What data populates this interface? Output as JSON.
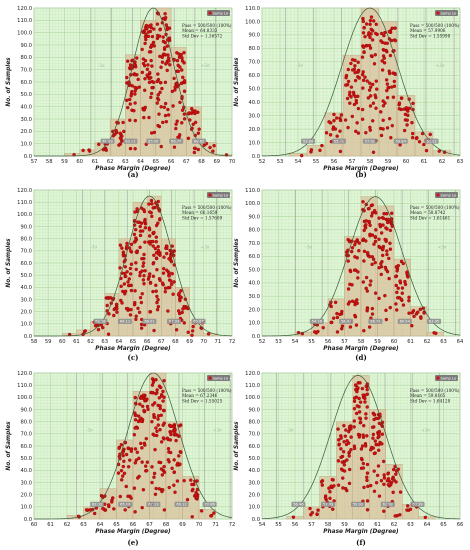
{
  "figure": {
    "panels_count": 6
  },
  "chart_data": [
    {
      "type": "bar",
      "caption": "(a)",
      "xlabel": "Phase Margin (Degree)",
      "ylabel": "No. of Samples",
      "xlim": [
        57,
        70
      ],
      "xticks": [
        "57",
        "58",
        "59",
        "60",
        "61",
        "62",
        "63",
        "64",
        "65",
        "66",
        "67",
        "68",
        "69",
        "70"
      ],
      "ylim": [
        0,
        120
      ],
      "yticks": [
        "0.0",
        "10.0",
        "20.0",
        "30.0",
        "40.0",
        "50.0",
        "60.0",
        "70.0",
        "80.0",
        "90.0",
        "100.0",
        "110.0",
        "120.0"
      ],
      "bins": [
        {
          "x0": 59.0,
          "x1": 60.0,
          "value": 2
        },
        {
          "x0": 60.0,
          "x1": 61.0,
          "value": 5
        },
        {
          "x0": 61.0,
          "x1": 62.0,
          "value": 11
        },
        {
          "x0": 62.0,
          "x1": 63.0,
          "value": 30
        },
        {
          "x0": 63.0,
          "x1": 64.0,
          "value": 82
        },
        {
          "x0": 64.0,
          "x1": 65.0,
          "value": 110
        },
        {
          "x0": 65.0,
          "x1": 66.0,
          "value": 120
        },
        {
          "x0": 66.0,
          "x1": 67.0,
          "value": 88
        },
        {
          "x0": 67.0,
          "x1": 68.0,
          "value": 40
        },
        {
          "x0": 68.0,
          "x1": 69.0,
          "value": 11
        },
        {
          "x0": 69.0,
          "x1": 70.0,
          "value": 1
        }
      ],
      "mean": 64.8333,
      "std": 1.36572,
      "stats": [
        "Pass = 500/500 (100%)",
        "Mean = 64.8333",
        "Std Dev = 1.36572"
      ],
      "legend": "Samp Lo = 50.00",
      "sigma_labels": [
        "-3σ",
        "+3σ"
      ],
      "markers": [
        "61.09",
        "63.02",
        "65.00",
        "66.77",
        "68.62"
      ],
      "series_color": "#cc1111",
      "bar_color": "#d9c7a3",
      "plot_bg": "#dff5d6"
    },
    {
      "type": "bar",
      "caption": "(b)",
      "xlabel": "Phase Margin (Degree)",
      "ylabel": "No. of Samples",
      "xlim": [
        52,
        63
      ],
      "xticks": [
        "52",
        "53",
        "54",
        "55",
        "56",
        "57",
        "58",
        "59",
        "60",
        "61",
        "62",
        "63"
      ],
      "ylim": [
        0,
        110
      ],
      "yticks": [
        "0.0",
        "10.0",
        "20.0",
        "30.0",
        "40.0",
        "50.0",
        "60.0",
        "70.0",
        "80.0",
        "90.0",
        "100.0",
        "110.0"
      ],
      "bins": [
        {
          "x0": 53.5,
          "x1": 54.5,
          "value": 2
        },
        {
          "x0": 54.5,
          "x1": 55.5,
          "value": 8
        },
        {
          "x0": 55.5,
          "x1": 56.5,
          "value": 32
        },
        {
          "x0": 56.5,
          "x1": 57.5,
          "value": 75
        },
        {
          "x0": 57.5,
          "x1": 58.5,
          "value": 110
        },
        {
          "x0": 58.5,
          "x1": 59.5,
          "value": 100
        },
        {
          "x0": 59.5,
          "x1": 60.5,
          "value": 45
        },
        {
          "x0": 60.5,
          "x1": 61.5,
          "value": 18
        },
        {
          "x0": 61.5,
          "x1": 62.5,
          "value": 4
        }
      ],
      "mean": 57.9906,
      "std": 1.55998,
      "stats": [
        "Pass = 500/500 (100%)",
        "Mean = 57.9906",
        "Std Dev = 1.55998"
      ],
      "legend": "Samp Lo = 50.00",
      "sigma_labels": [
        "-3σ",
        "+3σ"
      ],
      "markers": [
        "53.89",
        "55.91",
        "57.92",
        "59.84",
        "62.22"
      ],
      "series_color": "#cc1111",
      "bar_color": "#d9c7a3",
      "plot_bg": "#dff5d6"
    },
    {
      "type": "bar",
      "caption": "(c)",
      "xlabel": "Phase Margin (Degree)",
      "ylabel": "No. of Samples",
      "xlim": [
        58,
        72
      ],
      "xticks": [
        "58",
        "59",
        "60",
        "61",
        "62",
        "63",
        "64",
        "65",
        "66",
        "67",
        "68",
        "69",
        "70",
        "71",
        "72"
      ],
      "ylim": [
        0,
        120
      ],
      "yticks": [
        "0.0",
        "10.0",
        "20.0",
        "30.0",
        "40.0",
        "50.0",
        "60.0",
        "70.0",
        "80.0",
        "90.0",
        "100.0",
        "110.0",
        "120.0"
      ],
      "bins": [
        {
          "x0": 60.0,
          "x1": 61.0,
          "value": 2
        },
        {
          "x0": 61.0,
          "x1": 62.0,
          "value": 5
        },
        {
          "x0": 62.0,
          "x1": 63.0,
          "value": 12
        },
        {
          "x0": 63.0,
          "x1": 64.0,
          "value": 35
        },
        {
          "x0": 64.0,
          "x1": 65.0,
          "value": 80
        },
        {
          "x0": 65.0,
          "x1": 66.0,
          "value": 110
        },
        {
          "x0": 66.0,
          "x1": 67.0,
          "value": 115
        },
        {
          "x0": 67.0,
          "x1": 68.0,
          "value": 80
        },
        {
          "x0": 68.0,
          "x1": 69.0,
          "value": 40
        },
        {
          "x0": 69.0,
          "x1": 70.0,
          "value": 12
        },
        {
          "x0": 70.0,
          "x1": 71.0,
          "value": 2
        }
      ],
      "mean": 66.1659,
      "std": 1.57609,
      "stats": [
        "Pass = 500/500 (100%)",
        "Mean = 66.1659",
        "Std Dev = 1.57609"
      ],
      "legend": "Samp Lo = 50.00",
      "sigma_labels": [
        "-3σ",
        "+3σ"
      ],
      "markers": [
        "62.18",
        "64.11",
        "66.01",
        "67.93",
        "69.87"
      ],
      "series_color": "#cc1111",
      "bar_color": "#d9c7a3",
      "plot_bg": "#dff5d6"
    },
    {
      "type": "bar",
      "caption": "(d)",
      "xlabel": "Phase Margin (Degree)",
      "ylabel": "No. of Samples",
      "xlim": [
        52,
        64
      ],
      "xticks": [
        "52",
        "53",
        "54",
        "55",
        "56",
        "57",
        "58",
        "59",
        "60",
        "61",
        "62",
        "63",
        "64"
      ],
      "ylim": [
        0,
        110
      ],
      "yticks": [
        "0.0",
        "10.0",
        "20.0",
        "30.0",
        "40.0",
        "50.0",
        "60.0",
        "70.0",
        "80.0",
        "90.0",
        "100.0",
        "110.0"
      ],
      "bins": [
        {
          "x0": 54.0,
          "x1": 55.0,
          "value": 3
        },
        {
          "x0": 55.0,
          "x1": 56.0,
          "value": 10
        },
        {
          "x0": 56.0,
          "x1": 57.0,
          "value": 28
        },
        {
          "x0": 57.0,
          "x1": 58.0,
          "value": 75
        },
        {
          "x0": 58.0,
          "x1": 59.0,
          "value": 105
        },
        {
          "x0": 59.0,
          "x1": 60.0,
          "value": 98
        },
        {
          "x0": 60.0,
          "x1": 61.0,
          "value": 58
        },
        {
          "x0": 61.0,
          "x1": 62.0,
          "value": 22
        },
        {
          "x0": 62.0,
          "x1": 63.0,
          "value": 3
        }
      ],
      "mean": 58.8742,
      "std": 1.61461,
      "stats": [
        "Pass = 500/500 (100%)",
        "Mean = 58.8742",
        "Std Dev = 1.61461"
      ],
      "legend": "Samp Lo = 50.00",
      "sigma_labels": [
        "-3σ",
        "+3σ"
      ],
      "markers": [
        "54.26",
        "56.42",
        "58.71",
        "60.54",
        "63.05"
      ],
      "series_color": "#cc1111",
      "bar_color": "#d9c7a3",
      "plot_bg": "#dff5d6"
    },
    {
      "type": "bar",
      "caption": "(e)",
      "xlabel": "Phase Margin (Degree)",
      "ylabel": "No. of Samples",
      "xlim": [
        60,
        72
      ],
      "xticks": [
        "60",
        "61",
        "62",
        "63",
        "64",
        "65",
        "66",
        "67",
        "68",
        "69",
        "70",
        "71",
        "72"
      ],
      "ylim": [
        0,
        120
      ],
      "yticks": [
        "0.0",
        "10.0",
        "20.0",
        "30.0",
        "40.0",
        "50.0",
        "60.0",
        "70.0",
        "80.0",
        "90.0",
        "100.0",
        "110.0",
        "120.0"
      ],
      "bins": [
        {
          "x0": 62.0,
          "x1": 63.0,
          "value": 3
        },
        {
          "x0": 63.0,
          "x1": 64.0,
          "value": 10
        },
        {
          "x0": 64.0,
          "x1": 65.0,
          "value": 25
        },
        {
          "x0": 65.0,
          "x1": 66.0,
          "value": 65
        },
        {
          "x0": 66.0,
          "x1": 67.0,
          "value": 105
        },
        {
          "x0": 67.0,
          "x1": 68.0,
          "value": 120
        },
        {
          "x0": 68.0,
          "x1": 69.0,
          "value": 80
        },
        {
          "x0": 69.0,
          "x1": 70.0,
          "value": 35
        },
        {
          "x0": 70.0,
          "x1": 71.0,
          "value": 8
        }
      ],
      "mean": 67.2346,
      "std": 1.55025,
      "stats": [
        "Pass = 500/500 (100%)",
        "Mean = 67.2346",
        "Std Dev = 1.55025"
      ],
      "legend": "Samp Lo = 50.00",
      "sigma_labels": [
        "-3σ",
        "+3σ"
      ],
      "markers": [
        "63.32",
        "65.08",
        "67.13",
        "69.12",
        "70.86"
      ],
      "series_color": "#cc1111",
      "bar_color": "#d9c7a3",
      "plot_bg": "#dff5d6"
    },
    {
      "type": "bar",
      "caption": "(f)",
      "xlabel": "Phase Margin (Degree)",
      "ylabel": "No. of Samples",
      "xlim": [
        54,
        66
      ],
      "xticks": [
        "54",
        "55",
        "56",
        "57",
        "58",
        "59",
        "60",
        "61",
        "62",
        "63",
        "64",
        "65",
        "66"
      ],
      "ylim": [
        0,
        120
      ],
      "yticks": [
        "0.0",
        "10.0",
        "20.0",
        "30.0",
        "40.0",
        "50.0",
        "60.0",
        "70.0",
        "80.0",
        "90.0",
        "100.0",
        "110.0",
        "120.0"
      ],
      "bins": [
        {
          "x0": 55.5,
          "x1": 56.5,
          "value": 2
        },
        {
          "x0": 56.5,
          "x1": 57.5,
          "value": 10
        },
        {
          "x0": 57.5,
          "x1": 58.5,
          "value": 35
        },
        {
          "x0": 58.5,
          "x1": 59.5,
          "value": 80
        },
        {
          "x0": 59.5,
          "x1": 60.5,
          "value": 118
        },
        {
          "x0": 60.5,
          "x1": 61.5,
          "value": 90
        },
        {
          "x0": 61.5,
          "x1": 62.5,
          "value": 45
        },
        {
          "x0": 62.5,
          "x1": 63.5,
          "value": 12
        },
        {
          "x0": 63.5,
          "x1": 64.5,
          "value": 2
        }
      ],
      "mean": 59.8165,
      "std": 1.64128,
      "stats": [
        "Pass = 500/500 (100%)",
        "Mean = 59.8165",
        "Std Dev = 1.64128"
      ],
      "legend": "Samp Lo = 50.00",
      "sigma_labels": [
        "-3σ",
        "+3σ"
      ],
      "markers": [
        "56.46",
        "57.93",
        "59.92",
        "61.92",
        "63.39"
      ],
      "series_color": "#cc1111",
      "bar_color": "#d9c7a3",
      "plot_bg": "#dff5d6"
    }
  ]
}
